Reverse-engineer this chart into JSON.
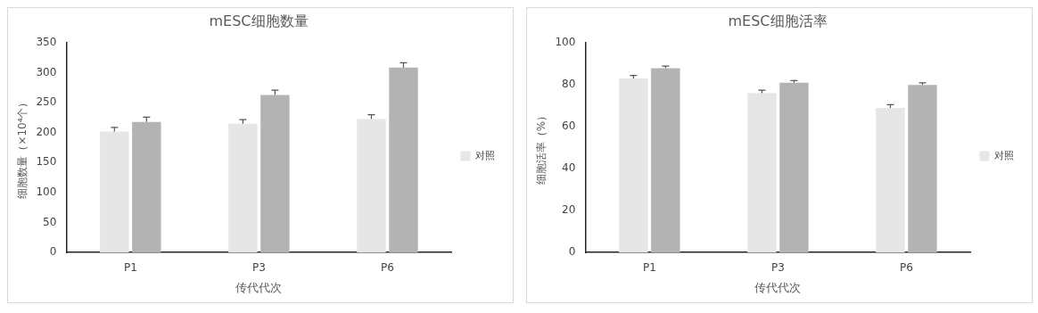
{
  "chart_data": [
    {
      "type": "bar",
      "title": "mESC细胞数量",
      "xlabel": "传代代次",
      "ylabel": "细胞数量（×10⁴个）",
      "categories": [
        "P1",
        "P3",
        "P6"
      ],
      "ylim": [
        0,
        350
      ],
      "yticks": [
        0,
        50,
        100,
        150,
        200,
        250,
        300,
        350
      ],
      "grid": false,
      "legend": "right",
      "series": [
        {
          "name": "对照",
          "color": "#e6e6e6",
          "values": [
            202,
            215,
            223
          ],
          "errors": [
            7,
            7,
            7
          ]
        },
        {
          "color": "#b3b3b3",
          "values": [
            218,
            263,
            309
          ],
          "errors": [
            8,
            8,
            8
          ]
        }
      ]
    },
    {
      "type": "bar",
      "title": "mESC细胞活率",
      "xlabel": "传代代次",
      "ylabel": "细胞活率（%）",
      "categories": [
        "P1",
        "P3",
        "P6"
      ],
      "ylim": [
        0,
        100
      ],
      "yticks": [
        0,
        20,
        40,
        60,
        80,
        100
      ],
      "grid": false,
      "legend": "right",
      "series": [
        {
          "name": "对照",
          "color": "#e6e6e6",
          "values": [
            83,
            76,
            69
          ],
          "errors": [
            1.5,
            1.5,
            1.5
          ]
        },
        {
          "color": "#b3b3b3",
          "values": [
            88,
            81,
            80
          ],
          "errors": [
            1,
            1,
            1
          ]
        }
      ]
    }
  ]
}
